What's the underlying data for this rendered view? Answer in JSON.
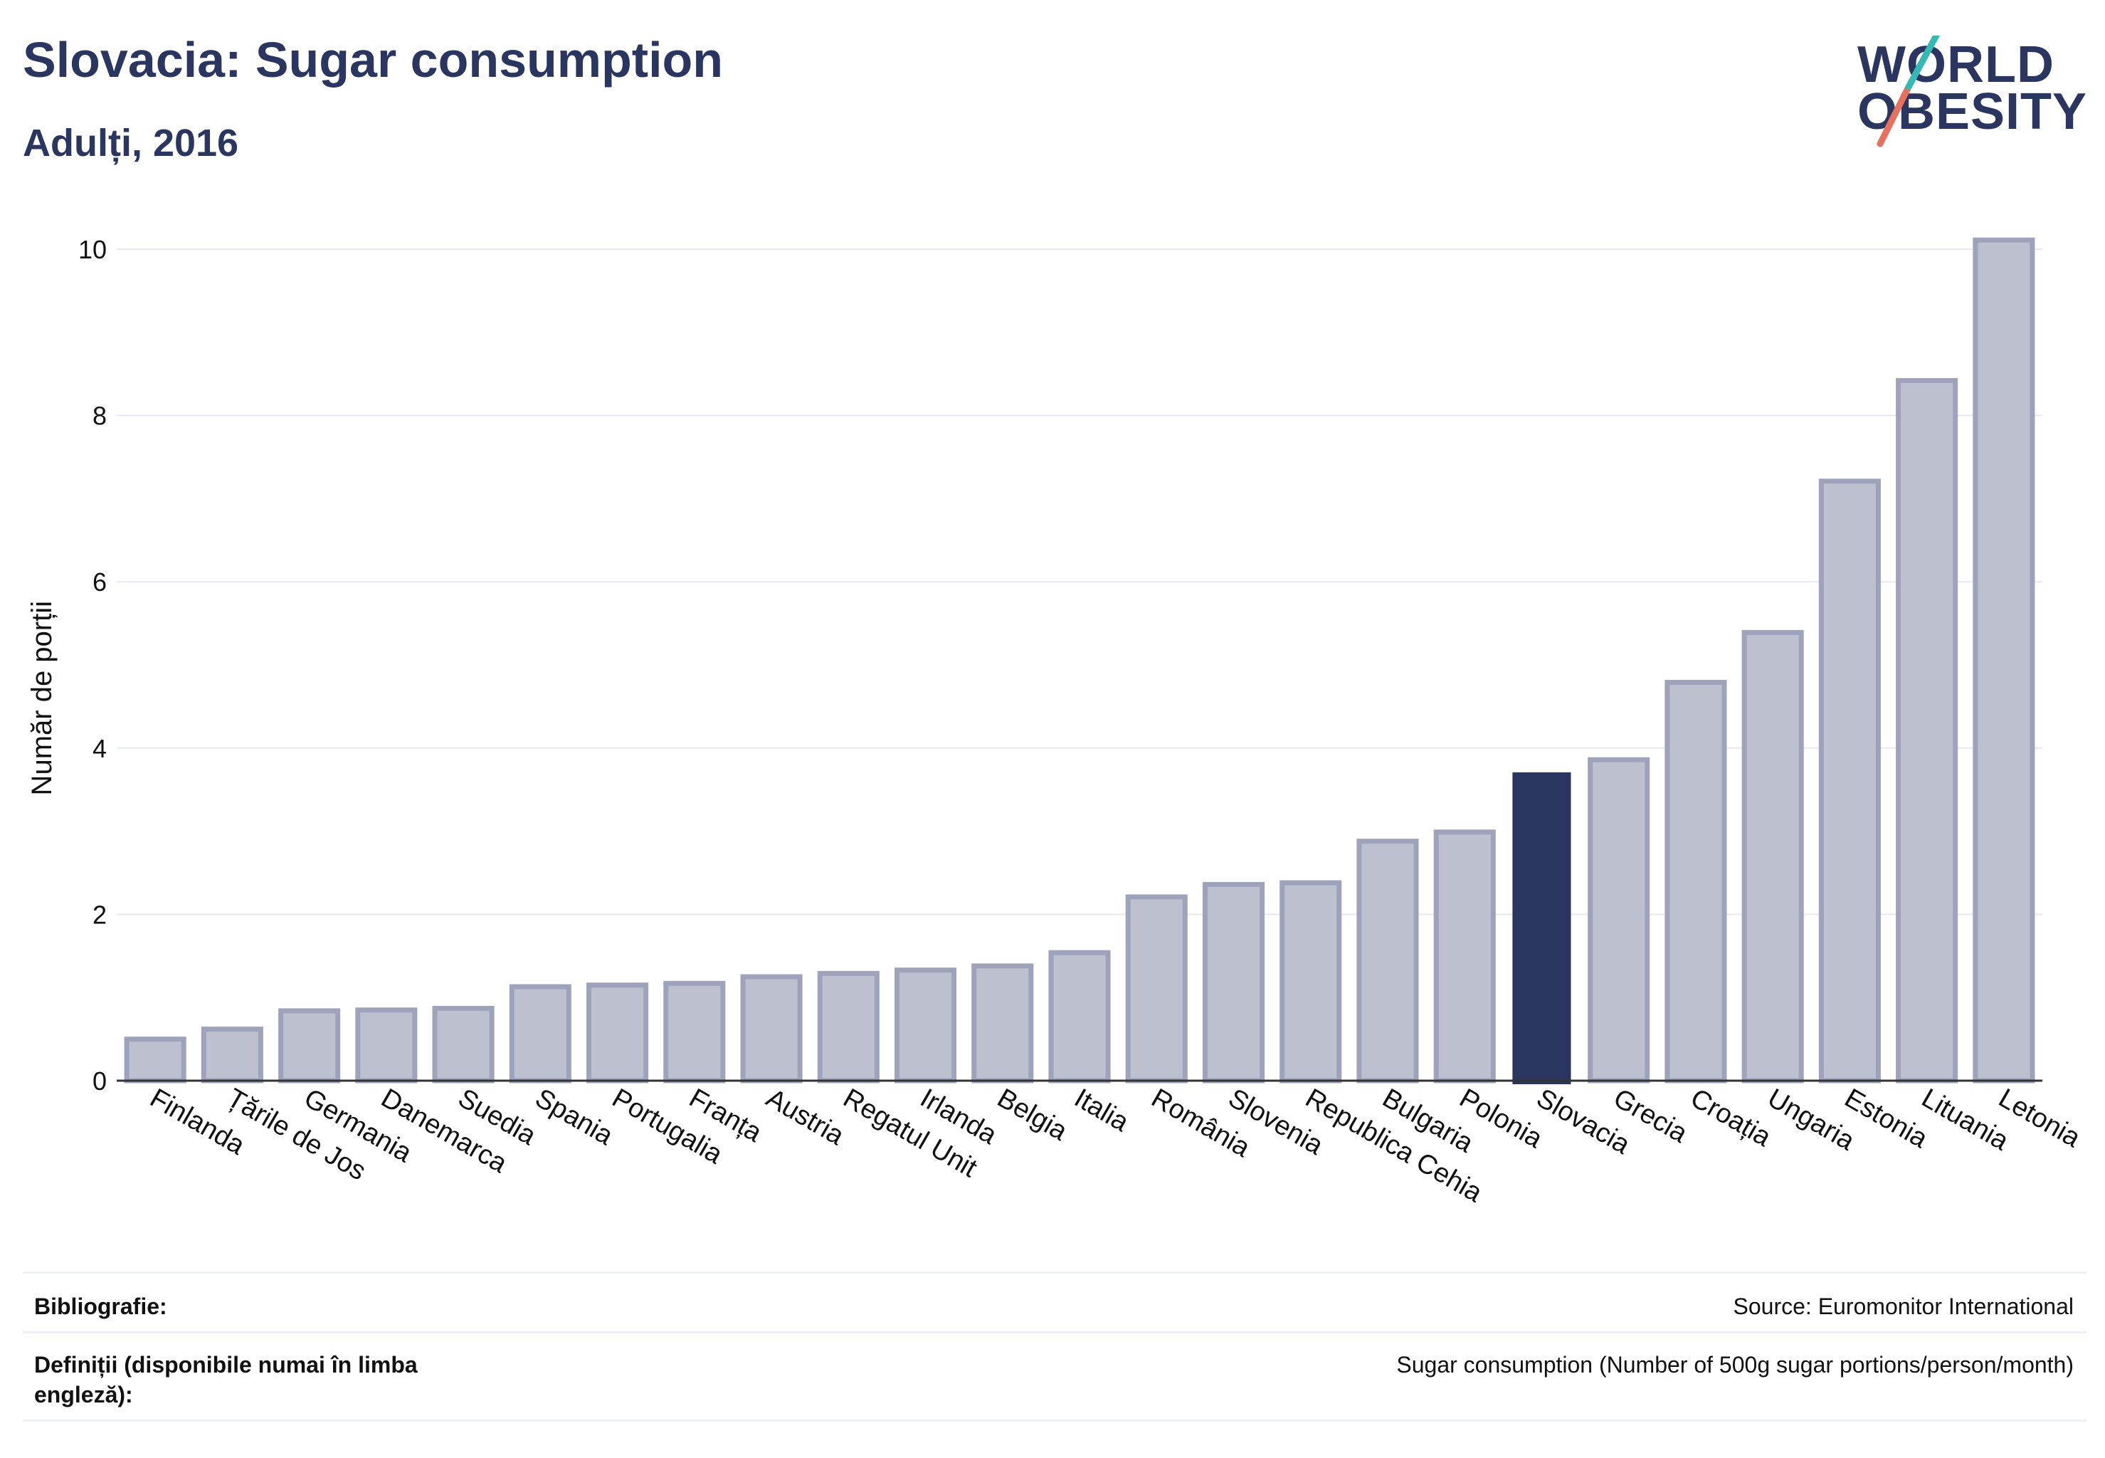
{
  "header": {
    "title": "Slovacia: Sugar consumption",
    "subtitle": "Adulți, 2016"
  },
  "logo": {
    "line1": "WORLD",
    "line2": "OBESITY"
  },
  "colors": {
    "primary": "#2a3560",
    "bar_fill": "#bcc0cf",
    "bar_stroke": "#9ea3bb",
    "grid": "#e6e8f0",
    "logo_teal": "#35b9b4",
    "logo_coral": "#e8705e"
  },
  "chart_data": {
    "type": "bar",
    "categories": [
      "Finlanda",
      "Țările de Jos",
      "Germania",
      "Danemarca",
      "Suedia",
      "Spania",
      "Portugalia",
      "Franța",
      "Austria",
      "Regatul Unit",
      "Irlanda",
      "Belgia",
      "Italia",
      "România",
      "Slovenia",
      "Republica Cehia",
      "Bulgaria",
      "Polonia",
      "Slovacia",
      "Grecia",
      "Croația",
      "Ungaria",
      "Estonia",
      "Lituania",
      "Letonia"
    ],
    "values": [
      0.5,
      0.62,
      0.84,
      0.85,
      0.87,
      1.13,
      1.15,
      1.17,
      1.25,
      1.29,
      1.33,
      1.38,
      1.54,
      2.21,
      2.36,
      2.38,
      2.88,
      2.99,
      3.7,
      3.86,
      4.79,
      5.39,
      7.21,
      8.42,
      10.11
    ],
    "highlight": "Slovacia",
    "ylabel": "Număr de porții",
    "xlabel": "",
    "ylim": [
      0,
      10.3
    ],
    "yticks": [
      0,
      2,
      4,
      6,
      8,
      10
    ],
    "grid": true
  },
  "footer": {
    "bibliography_label": "Bibliografie:",
    "bibliography_value": "Source: Euromonitor International",
    "definitions_label": "Definiții (disponibile numai în limba engleză):",
    "definitions_value": "Sugar consumption (Number of 500g sugar portions/person/month)"
  }
}
